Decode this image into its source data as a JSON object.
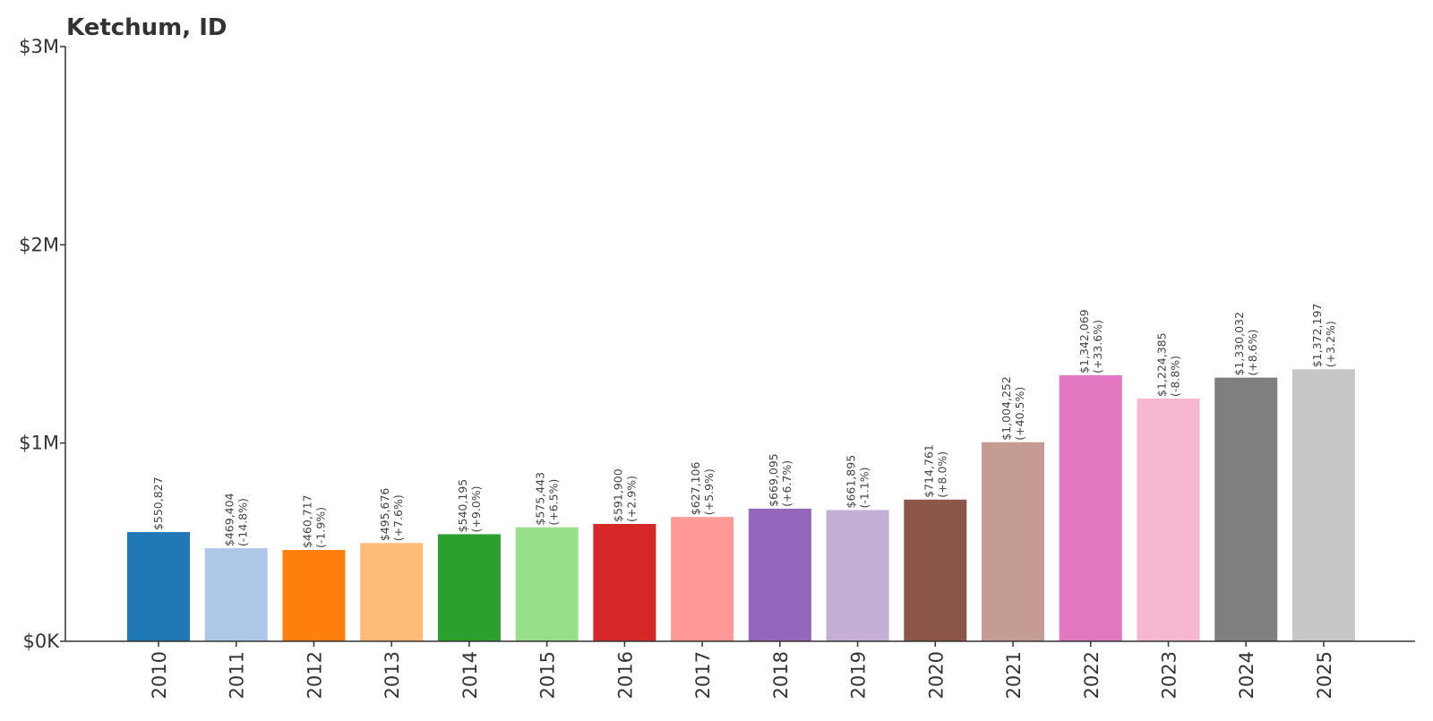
{
  "chart_data": {
    "type": "bar",
    "title": "Ketchum, ID",
    "xlabel": "",
    "ylabel": "",
    "ylim": [
      0,
      3000000
    ],
    "yticks": [
      {
        "value": 0,
        "label": "$0K"
      },
      {
        "value": 1000000,
        "label": "$1M"
      },
      {
        "value": 2000000,
        "label": "$2M"
      },
      {
        "value": 3000000,
        "label": "$3M"
      }
    ],
    "categories": [
      "2010",
      "2011",
      "2012",
      "2013",
      "2014",
      "2015",
      "2016",
      "2017",
      "2018",
      "2019",
      "2020",
      "2021",
      "2022",
      "2023",
      "2024",
      "2025"
    ],
    "values": [
      550827,
      469404,
      460717,
      495676,
      540195,
      575443,
      591900,
      627106,
      669095,
      661895,
      714761,
      1004252,
      1342069,
      1224385,
      1330032,
      1372197
    ],
    "value_labels": [
      "$550,827",
      "$469,404",
      "$460,717",
      "$495,676",
      "$540,195",
      "$575,443",
      "$591,900",
      "$627,106",
      "$669,095",
      "$661,895",
      "$714,761",
      "$1,004,252",
      "$1,342,069",
      "$1,224,385",
      "$1,330,032",
      "$1,372,197"
    ],
    "change_labels": [
      "",
      "(-14.8%)",
      "(-1.9%)",
      "(+7.6%)",
      "(+9.0%)",
      "(+6.5%)",
      "(+2.9%)",
      "(+5.9%)",
      "(+6.7%)",
      "(-1.1%)",
      "(+8.0%)",
      "(+40.5%)",
      "(+33.6%)",
      "(-8.8%)",
      "(+8.6%)",
      "(+3.2%)"
    ],
    "colors": [
      "#1f77b4",
      "#aec7e8",
      "#ff7f0e",
      "#ffbb78",
      "#2ca02c",
      "#98df8a",
      "#d62728",
      "#ff9896",
      "#9467bd",
      "#c5b0d5",
      "#8c564b",
      "#c49c94",
      "#e377c2",
      "#f7b6d2",
      "#7f7f7f",
      "#c7c7c7"
    ],
    "grid": false,
    "legend": "none"
  }
}
